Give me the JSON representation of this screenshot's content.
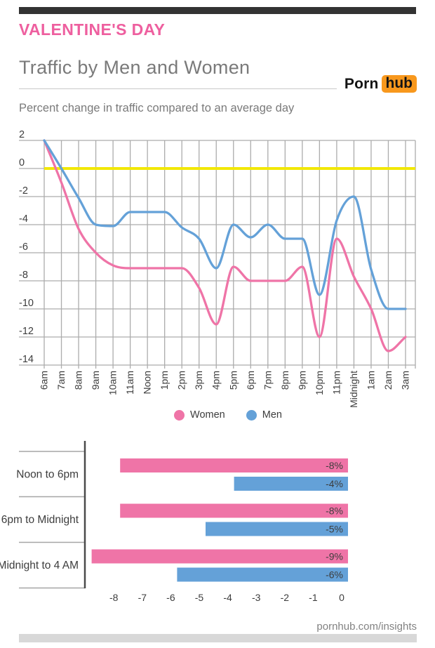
{
  "header": {
    "eyebrow": "VALENTINE'S DAY",
    "title": "Traffic by Men and Women",
    "description": "Percent change in traffic compared to an average day",
    "logo_part1": "Porn",
    "logo_part2": "hub"
  },
  "colors": {
    "women": "#ef74a7",
    "men": "#64a1d8",
    "zero_line": "#f2e805",
    "grid": "#acacac",
    "axis_text": "#3d3d3d",
    "bar_axis": "#4a4a4a",
    "row_separator": "#a6a6a6",
    "heading_pink": "#ee5f9f",
    "heading_gray": "#7a7a7a",
    "logo_orange": "#f8981d",
    "top_bar": "#333333",
    "bottom_bar": "#d8d8d8"
  },
  "chart_data": [
    {
      "type": "line",
      "title": "Percent change in traffic compared to an average day",
      "categories": [
        "6am",
        "7am",
        "8am",
        "9am",
        "10am",
        "11am",
        "Noon",
        "1pm",
        "2pm",
        "3pm",
        "4pm",
        "5pm",
        "6pm",
        "7pm",
        "8pm",
        "9pm",
        "10pm",
        "11pm",
        "Midnight",
        "1am",
        "2am",
        "3am"
      ],
      "series": [
        {
          "name": "Women",
          "color": "#ef74a7",
          "values": [
            2,
            -1,
            -4.3,
            -6,
            -6.9,
            -7.1,
            -7.1,
            -7.1,
            -7.1,
            -8.5,
            -11.1,
            -7,
            -8,
            -8,
            -8,
            -7,
            -12,
            -5,
            -7.7,
            -10,
            -13,
            -12
          ]
        },
        {
          "name": "Men",
          "color": "#64a1d8",
          "values": [
            2,
            0,
            -2.1,
            -4,
            -4.1,
            -3.1,
            -3.1,
            -3.1,
            -4.2,
            -5,
            -7.1,
            -4,
            -4.9,
            -4,
            -5,
            -5,
            -9,
            -3.7,
            -2,
            -7.2,
            -10,
            -10
          ]
        }
      ],
      "yticks": [
        2,
        0,
        -2,
        -4,
        -6,
        -8,
        -10,
        -12,
        -14
      ],
      "ylim": [
        -14,
        2
      ],
      "zero_line": 0,
      "grid": true,
      "legend_position": "bottom"
    },
    {
      "type": "bar",
      "orientation": "horizontal",
      "categories": [
        "Noon to 6pm",
        "6pm to Midnight",
        "Midnight to 4 AM"
      ],
      "series": [
        {
          "name": "Women",
          "color": "#ef74a7",
          "values": [
            -8,
            -8,
            -9
          ],
          "labels": [
            "-8%",
            "-8%",
            "-9%"
          ]
        },
        {
          "name": "Men",
          "color": "#64a1d8",
          "values": [
            -4,
            -5,
            -6
          ],
          "labels": [
            "-4%",
            "-5%",
            "-6%"
          ]
        }
      ],
      "xticks": [
        -8,
        -7,
        -6,
        -5,
        -4,
        -3,
        -2,
        -1,
        0
      ],
      "xlim": [
        -9,
        0
      ]
    }
  ],
  "legend": {
    "items": [
      {
        "label": "Women",
        "color": "#ef74a7"
      },
      {
        "label": "Men",
        "color": "#64a1d8"
      }
    ]
  },
  "footer": {
    "link": "pornhub.com/insights"
  }
}
